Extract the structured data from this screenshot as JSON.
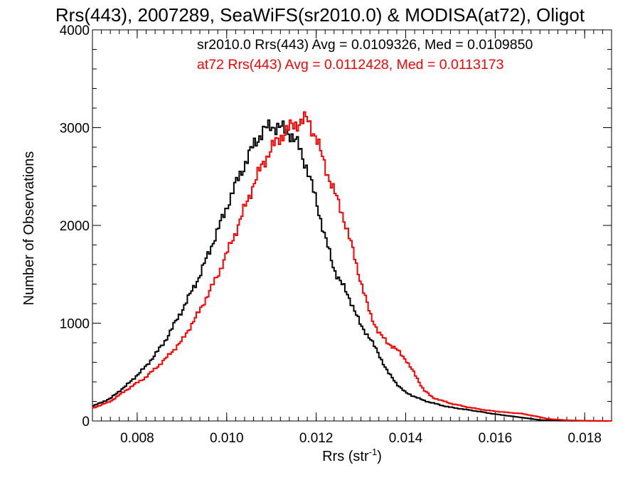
{
  "chart_data": {
    "type": "line",
    "title": "Rrs(443), 2007289, SeaWiFS(sr2010.0) & MODISA(at72), Oligot",
    "xlabel": "Rrs (str",
    "xlabel_sup": "-1",
    "xlabel_suffix": ")",
    "ylabel": "Number of Observations",
    "xlim": [
      0.007,
      0.0186
    ],
    "ylim": [
      0,
      4000
    ],
    "x_ticks": [
      "0.008",
      "0.010",
      "0.012",
      "0.014",
      "0.016",
      "0.018"
    ],
    "y_ticks": [
      "0",
      "1000",
      "2000",
      "3000",
      "4000"
    ],
    "grid": false,
    "legend": "top-right",
    "annotations": [
      {
        "text": "sr2010.0 Rrs(443) Avg = 0.0109326, Med = 0.0109850",
        "color": "#000000"
      },
      {
        "text": "at72 Rrs(443) Avg = 0.0112428, Med = 0.0113173",
        "color": "#ff0000"
      }
    ],
    "series": [
      {
        "color": "#000000",
        "points": [
          [
            0.007,
            150
          ],
          [
            0.0074,
            230
          ],
          [
            0.0078,
            380
          ],
          [
            0.0082,
            560
          ],
          [
            0.0086,
            800
          ],
          [
            0.009,
            1130
          ],
          [
            0.0094,
            1490
          ],
          [
            0.0098,
            1950
          ],
          [
            0.0102,
            2420
          ],
          [
            0.0106,
            2820
          ],
          [
            0.0108,
            2960
          ],
          [
            0.011,
            3020
          ],
          [
            0.0112,
            3000
          ],
          [
            0.0114,
            2950
          ],
          [
            0.0116,
            2820
          ],
          [
            0.0118,
            2580
          ],
          [
            0.012,
            2250
          ],
          [
            0.0122,
            1880
          ],
          [
            0.0124,
            1550
          ],
          [
            0.0126,
            1380
          ],
          [
            0.0128,
            1200
          ],
          [
            0.013,
            970
          ],
          [
            0.0132,
            850
          ],
          [
            0.0134,
            680
          ],
          [
            0.0136,
            500
          ],
          [
            0.0138,
            380
          ],
          [
            0.014,
            290
          ],
          [
            0.0144,
            210
          ],
          [
            0.0148,
            160
          ],
          [
            0.015,
            140
          ],
          [
            0.0156,
            100
          ],
          [
            0.016,
            70
          ],
          [
            0.0166,
            35
          ],
          [
            0.017,
            10
          ],
          [
            0.0174,
            3
          ],
          [
            0.0186,
            0
          ]
        ]
      },
      {
        "color": "#ff0000",
        "points": [
          [
            0.007,
            130
          ],
          [
            0.0074,
            200
          ],
          [
            0.0078,
            330
          ],
          [
            0.0082,
            450
          ],
          [
            0.0086,
            620
          ],
          [
            0.009,
            820
          ],
          [
            0.0094,
            1130
          ],
          [
            0.0098,
            1490
          ],
          [
            0.0102,
            1930
          ],
          [
            0.0106,
            2420
          ],
          [
            0.0108,
            2620
          ],
          [
            0.011,
            2790
          ],
          [
            0.0112,
            2900
          ],
          [
            0.0114,
            3000
          ],
          [
            0.0116,
            3050
          ],
          [
            0.0118,
            3090
          ],
          [
            0.012,
            2900
          ],
          [
            0.0122,
            2600
          ],
          [
            0.0124,
            2350
          ],
          [
            0.0126,
            2100
          ],
          [
            0.0128,
            1780
          ],
          [
            0.013,
            1420
          ],
          [
            0.0132,
            1100
          ],
          [
            0.0134,
            900
          ],
          [
            0.0136,
            800
          ],
          [
            0.0138,
            730
          ],
          [
            0.014,
            630
          ],
          [
            0.0142,
            480
          ],
          [
            0.0144,
            320
          ],
          [
            0.0146,
            240
          ],
          [
            0.015,
            180
          ],
          [
            0.0154,
            140
          ],
          [
            0.0158,
            110
          ],
          [
            0.0162,
            90
          ],
          [
            0.0166,
            75
          ],
          [
            0.017,
            40
          ],
          [
            0.0172,
            20
          ],
          [
            0.0176,
            8
          ],
          [
            0.018,
            3
          ],
          [
            0.0186,
            0
          ]
        ]
      }
    ]
  }
}
